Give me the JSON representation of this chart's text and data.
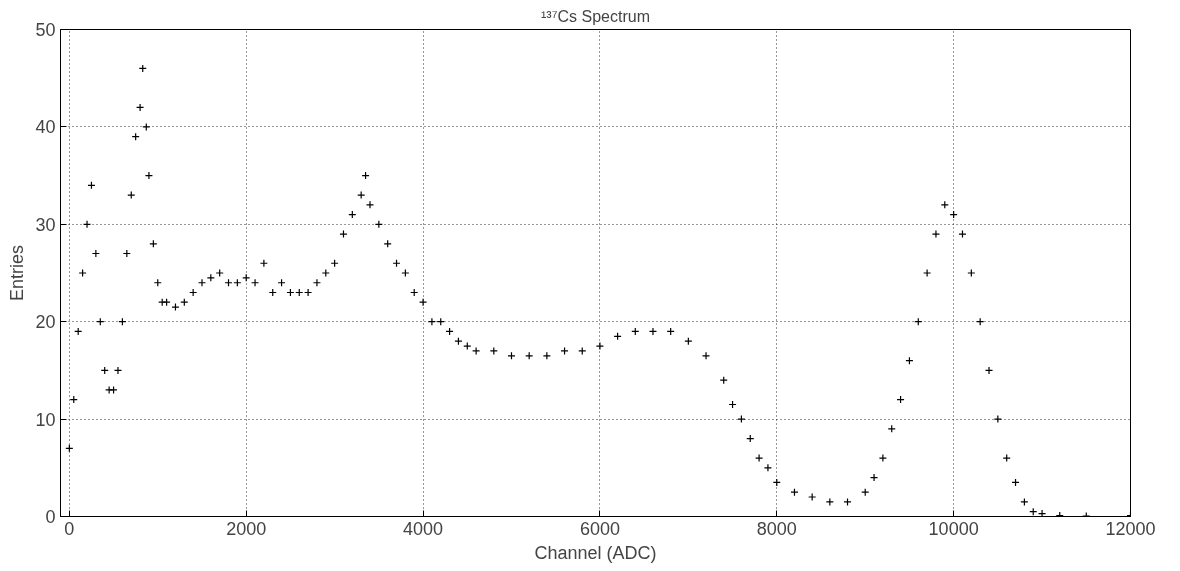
{
  "chart_data": {
    "type": "scatter",
    "title": "¹³⁷Cs Spectrum",
    "xlabel": "Channel (ADC)",
    "ylabel": "Entries",
    "x": [
      0,
      50,
      100,
      150,
      200,
      250,
      300,
      350,
      400,
      450,
      500,
      550,
      600,
      650,
      700,
      750,
      800,
      830,
      870,
      900,
      950,
      1000,
      1050,
      1100,
      1200,
      1300,
      1400,
      1500,
      1600,
      1700,
      1800,
      1900,
      2000,
      2100,
      2200,
      2300,
      2400,
      2500,
      2600,
      2700,
      2800,
      2900,
      3000,
      3100,
      3200,
      3300,
      3350,
      3400,
      3500,
      3600,
      3700,
      3800,
      3900,
      4000,
      4100,
      4200,
      4300,
      4400,
      4500,
      4600,
      4800,
      5000,
      5200,
      5400,
      5600,
      5800,
      6000,
      6200,
      6400,
      6600,
      6800,
      7000,
      7200,
      7400,
      7500,
      7600,
      7700,
      7800,
      7900,
      8000,
      8200,
      8400,
      8600,
      8800,
      9000,
      9100,
      9200,
      9300,
      9400,
      9500,
      9600,
      9700,
      9800,
      9900,
      10000,
      10100,
      10200,
      10300,
      10400,
      10500,
      10600,
      10700,
      10800,
      10900,
      11000,
      11200,
      11500,
      12000
    ],
    "values": [
      7,
      12,
      19,
      25,
      30,
      34,
      27,
      20,
      15,
      13,
      13,
      15,
      20,
      27,
      33,
      39,
      42,
      46,
      40,
      35,
      28,
      24,
      22,
      22,
      21.5,
      22,
      23,
      24,
      24.5,
      25,
      24,
      24,
      24.5,
      24,
      26,
      23,
      24,
      23,
      23,
      23,
      24,
      25,
      26,
      29,
      31,
      33,
      35,
      32,
      30,
      28,
      26,
      25,
      23,
      22,
      20,
      20,
      19,
      18,
      17.5,
      17,
      17,
      16.5,
      16.5,
      16.5,
      17,
      17,
      17.5,
      18.5,
      19,
      19,
      19,
      18,
      16.5,
      14,
      11.5,
      10,
      8,
      6,
      5,
      3.5,
      2.5,
      2,
      1.5,
      1.5,
      2.5,
      4,
      6,
      9,
      12,
      16,
      20,
      25,
      29,
      32,
      31,
      29,
      25,
      20,
      15,
      10,
      6,
      3.5,
      1.5,
      0.5,
      0.3,
      0.1,
      0.05,
      0.1
    ],
    "color": "#000000",
    "marker": "cross",
    "grid": true,
    "xlim": [
      -100,
      12000
    ],
    "ylim": [
      0,
      50
    ],
    "xticks": [
      0,
      2000,
      4000,
      6000,
      8000,
      10000,
      12000
    ],
    "yticks": [
      0,
      10,
      20,
      30,
      40,
      50
    ]
  }
}
